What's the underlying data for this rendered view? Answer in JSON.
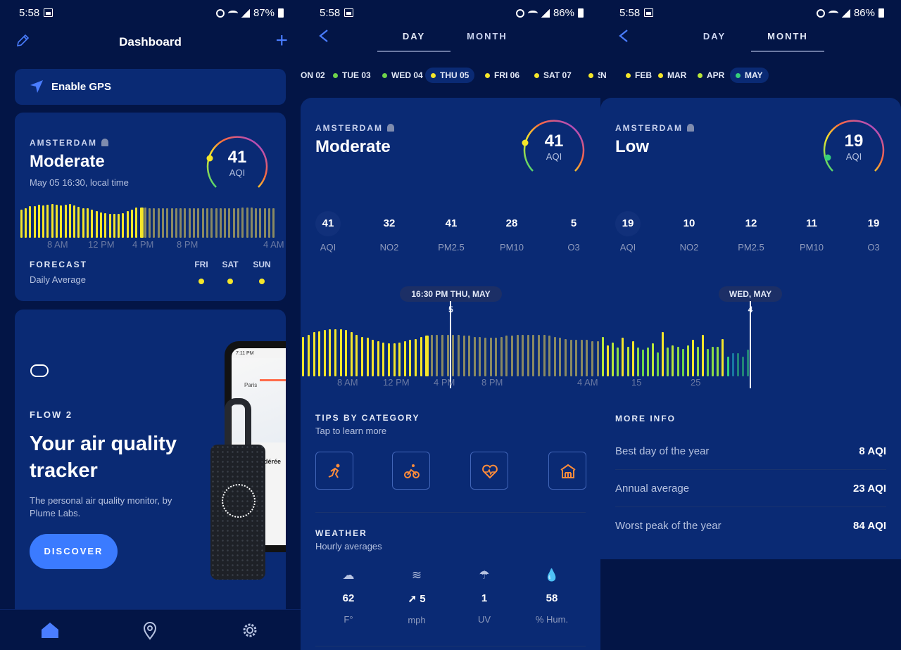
{
  "status_bars": [
    {
      "time": "5:58",
      "battery": "87%"
    },
    {
      "time": "5:58",
      "battery": "86%"
    },
    {
      "time": "5:58",
      "battery": "86%"
    }
  ],
  "dashboard": {
    "title": "Dashboard",
    "gps_label": "Enable GPS",
    "card": {
      "city": "AMSTERDAM",
      "level": "Moderate",
      "time": "May 05 16:30, local time",
      "aqi": "41",
      "aqi_unit": "AQI",
      "bars": [
        38,
        40,
        43,
        43,
        45,
        44,
        45,
        46,
        45,
        44,
        45,
        46,
        44,
        42,
        40,
        40,
        38,
        36,
        35,
        34,
        33,
        33,
        33,
        34,
        36,
        38,
        41,
        41,
        41,
        40,
        40,
        40,
        40,
        40,
        40,
        40,
        40,
        40,
        40,
        40,
        40,
        40,
        40,
        40,
        40,
        40,
        40,
        40,
        40,
        40,
        41,
        41,
        41,
        40,
        40,
        40,
        40,
        40
      ],
      "bar_colors": {
        "yellow": "#f4e62a",
        "muted": "#8a8a62"
      },
      "current_index": 27,
      "ticks": [
        "8 AM",
        "12 PM",
        "4 PM",
        "8 PM",
        "4 AM"
      ],
      "forecast_title": "FORECAST",
      "forecast_sub": "Daily Average",
      "forecast_days": [
        "FRI",
        "SAT",
        "SUN"
      ]
    },
    "promo": {
      "kicker": "FLOW 2",
      "headline": "Your air quality tracker",
      "desc": "The personal air quality monitor, by Plume Labs.",
      "button": "DISCOVER",
      "phone_time": "7:11 PM",
      "phone_city": "Paris",
      "phone_place": "dérée"
    },
    "tabs": [
      "home-icon",
      "location-icon",
      "settings-icon"
    ]
  },
  "day_view": {
    "tabs": [
      "DAY",
      "MONTH"
    ],
    "chips": [
      {
        "label": "ON 02",
        "color": "#f4e62a",
        "selected": false,
        "dot": false
      },
      {
        "label": "TUE 03",
        "color": "#6fd34a",
        "selected": false,
        "dot": true
      },
      {
        "label": "WED 04",
        "color": "#6fd34a",
        "selected": false,
        "dot": true
      },
      {
        "label": "THU 05",
        "color": "#f4e62a",
        "selected": true,
        "dot": true
      },
      {
        "label": "FRI 06",
        "color": "#f4e62a",
        "selected": false,
        "dot": true
      },
      {
        "label": "SAT 07",
        "color": "#f4e62a",
        "selected": false,
        "dot": true
      },
      {
        "label": "SUN",
        "color": "#f4e62a",
        "selected": false,
        "dot": true
      }
    ],
    "city": "AMSTERDAM",
    "level": "Moderate",
    "aqi": "41",
    "aqi_unit": "AQI",
    "metrics": [
      {
        "value": "41",
        "label": "AQI"
      },
      {
        "value": "32",
        "label": "NO2"
      },
      {
        "value": "41",
        "label": "PM2.5"
      },
      {
        "value": "28",
        "label": "PM10"
      },
      {
        "value": "5",
        "label": "O3"
      }
    ],
    "cursor_label": "16:30 PM THU, MAY 5",
    "bars": [
      36,
      38,
      40,
      41,
      42,
      43,
      43,
      43,
      42,
      40,
      38,
      36,
      35,
      33,
      32,
      31,
      30,
      30,
      31,
      32,
      33,
      34,
      36,
      37,
      38,
      38,
      38,
      38,
      38,
      38,
      37,
      37,
      36,
      36,
      35,
      35,
      35,
      36,
      37,
      37,
      38,
      38,
      38,
      38,
      38,
      38,
      37,
      36,
      35,
      34,
      33,
      33,
      33,
      33,
      32,
      32
    ],
    "current_index": 23,
    "ticks": [
      "8 AM",
      "12 PM",
      "4 PM",
      "8 PM",
      "4 AM"
    ],
    "tips_title": "TIPS BY CATEGORY",
    "tips_sub": "Tap to learn more",
    "categories": [
      "sport-icon",
      "cycling-icon",
      "health-icon",
      "indoor-icon"
    ],
    "weather_title": "WEATHER",
    "weather_sub": "Hourly averages",
    "weather": [
      {
        "icon": "rain-cloud-icon",
        "value": "62",
        "label": "F°"
      },
      {
        "icon": "wind-icon",
        "value": "5",
        "label": "mph"
      },
      {
        "icon": "umbrella-icon",
        "value": "1",
        "label": "UV"
      },
      {
        "icon": "drop-icon",
        "value": "58",
        "label": "% Hum."
      }
    ]
  },
  "month_view": {
    "tabs": [
      "DAY",
      "MONTH"
    ],
    "chips": [
      {
        "label": "N",
        "color": "#f4e62a",
        "selected": false,
        "dot": false
      },
      {
        "label": "FEB",
        "color": "#f4e62a",
        "selected": false,
        "dot": true
      },
      {
        "label": "MAR",
        "color": "#f4e62a",
        "selected": false,
        "dot": true
      },
      {
        "label": "APR",
        "color": "#b8e63a",
        "selected": false,
        "dot": true
      },
      {
        "label": "MAY",
        "color": "#35d07a",
        "selected": true,
        "dot": true
      }
    ],
    "city": "AMSTERDAM",
    "level": "Low",
    "aqi": "19",
    "aqi_unit": "AQI",
    "metrics": [
      {
        "value": "19",
        "label": "AQI"
      },
      {
        "value": "10",
        "label": "NO2"
      },
      {
        "value": "12",
        "label": "PM2.5"
      },
      {
        "value": "11",
        "label": "PM10"
      },
      {
        "value": "19",
        "label": "O3"
      }
    ],
    "cursor_label": "WED, MAY 4",
    "bars": [
      36,
      28,
      31,
      26,
      35,
      27,
      32,
      26,
      24,
      26,
      30,
      22,
      40,
      26,
      28,
      27,
      25,
      28,
      33,
      27,
      38,
      25,
      27,
      27,
      34,
      18,
      21,
      21,
      18,
      24
    ],
    "bar_colors": [
      "#b8e63a",
      "#f4e62a",
      "#b8e63a",
      "#8cdc46",
      "#f4e62a",
      "#b8e63a",
      "#f4e62a",
      "#8cdc46",
      "#6fd34a",
      "#8cdc46",
      "#b8e63a",
      "#6fd34a",
      "#f4e62a",
      "#8cdc46",
      "#b8e63a",
      "#8cdc46",
      "#6fd34a",
      "#b8e63a",
      "#f4e62a",
      "#8cdc46",
      "#f4e62a",
      "#6fd34a",
      "#8cdc46",
      "#8cdc46",
      "#f4e62a",
      "#35d07a",
      "#25b8c8",
      "#35d07a",
      "#35d07a",
      "#35d07a"
    ],
    "current_index": 25,
    "ticks": [
      "15",
      "25"
    ],
    "more_title": "MORE INFO",
    "info": [
      {
        "key": "Best day of the year",
        "value": "8 AQI"
      },
      {
        "key": "Annual average",
        "value": "23 AQI"
      },
      {
        "key": "Worst peak of the year",
        "value": "84 AQI"
      }
    ]
  }
}
